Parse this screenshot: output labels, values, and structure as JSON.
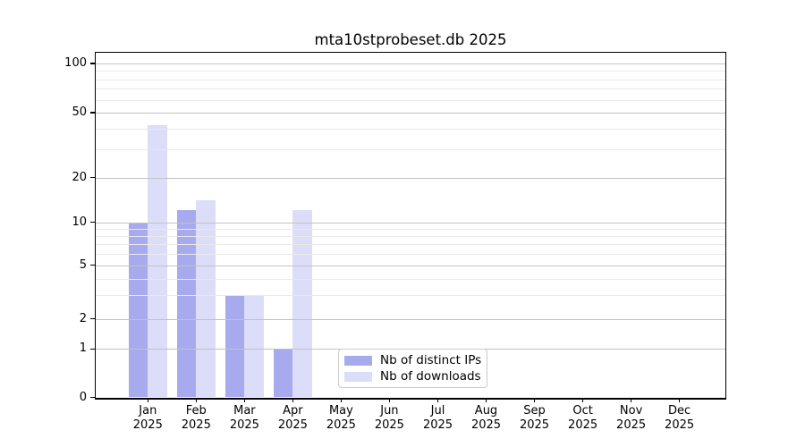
{
  "title": "mta10stprobeset.db 2025",
  "chart_data": {
    "type": "bar",
    "title": "mta10stprobeset.db 2025",
    "x_categories": [
      {
        "month": "Jan",
        "year": "2025"
      },
      {
        "month": "Feb",
        "year": "2025"
      },
      {
        "month": "Mar",
        "year": "2025"
      },
      {
        "month": "Apr",
        "year": "2025"
      },
      {
        "month": "May",
        "year": "2025"
      },
      {
        "month": "Jun",
        "year": "2025"
      },
      {
        "month": "Jul",
        "year": "2025"
      },
      {
        "month": "Aug",
        "year": "2025"
      },
      {
        "month": "Sep",
        "year": "2025"
      },
      {
        "month": "Oct",
        "year": "2025"
      },
      {
        "month": "Nov",
        "year": "2025"
      },
      {
        "month": "Dec",
        "year": "2025"
      }
    ],
    "series": [
      {
        "name": "Nb of distinct IPs",
        "color": "#a8aaee",
        "values": [
          10,
          12,
          3,
          1,
          0,
          0,
          0,
          0,
          0,
          0,
          0,
          0
        ]
      },
      {
        "name": "Nb of downloads",
        "color": "#dcddf8",
        "values": [
          42,
          14,
          3,
          12,
          0,
          0,
          0,
          0,
          0,
          0,
          0,
          0
        ]
      }
    ],
    "xlabel": "",
    "ylabel": "",
    "y_axis": {
      "scale": "log above 1, linear 0-1 (symlog-style)",
      "ticks": [
        0,
        1,
        2,
        5,
        10,
        20,
        50,
        100
      ],
      "minor_ticks": [
        3,
        4,
        6,
        7,
        8,
        9,
        30,
        40,
        60,
        70,
        80,
        90
      ],
      "range": [
        0,
        117
      ]
    },
    "grid": true,
    "legend_position": "lower center-left inside plot",
    "style": {
      "major_grid_color": "#c2c2c2",
      "minor_grid_color": "#e9e9e9",
      "axis_color": "#000000",
      "background": "#ffffff"
    }
  }
}
